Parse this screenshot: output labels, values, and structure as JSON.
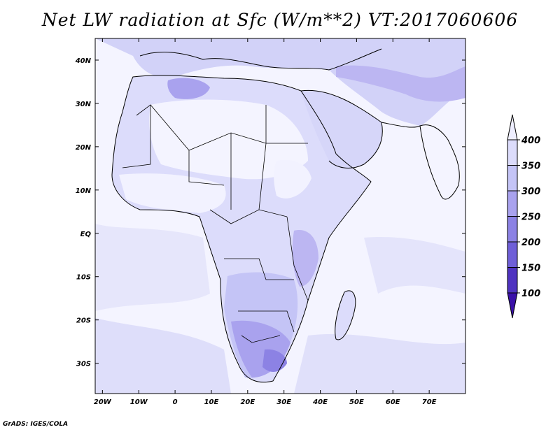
{
  "title": "Net LW radiation at Sfc (W/m**2) VT:2017060606",
  "credit": "GrADS: IGES/COLA",
  "map": {
    "lon_range": [
      -22,
      80
    ],
    "lat_range": [
      -37,
      45
    ],
    "lon_ticks": [
      {
        "value": -20,
        "label": "20W"
      },
      {
        "value": -10,
        "label": "10W"
      },
      {
        "value": 0,
        "label": "0"
      },
      {
        "value": 10,
        "label": "10E"
      },
      {
        "value": 20,
        "label": "20E"
      },
      {
        "value": 30,
        "label": "30E"
      },
      {
        "value": 40,
        "label": "40E"
      },
      {
        "value": 50,
        "label": "50E"
      },
      {
        "value": 60,
        "label": "60E"
      },
      {
        "value": 70,
        "label": "70E"
      }
    ],
    "lat_ticks": [
      {
        "value": 40,
        "label": "40N"
      },
      {
        "value": 30,
        "label": "30N"
      },
      {
        "value": 20,
        "label": "20N"
      },
      {
        "value": 10,
        "label": "10N"
      },
      {
        "value": 0,
        "label": "EQ"
      },
      {
        "value": -10,
        "label": "10S"
      },
      {
        "value": -20,
        "label": "20S"
      },
      {
        "value": -30,
        "label": "30S"
      }
    ]
  },
  "colorbar": {
    "labels": [
      "400",
      "350",
      "300",
      "250",
      "200",
      "150",
      "100"
    ],
    "colors": [
      "#eeeeff",
      "#dcdcfb",
      "#c4c4f6",
      "#a9a2ee",
      "#8c82e4",
      "#6f5fd8",
      "#4f33c0",
      "#3a10a8"
    ]
  }
}
